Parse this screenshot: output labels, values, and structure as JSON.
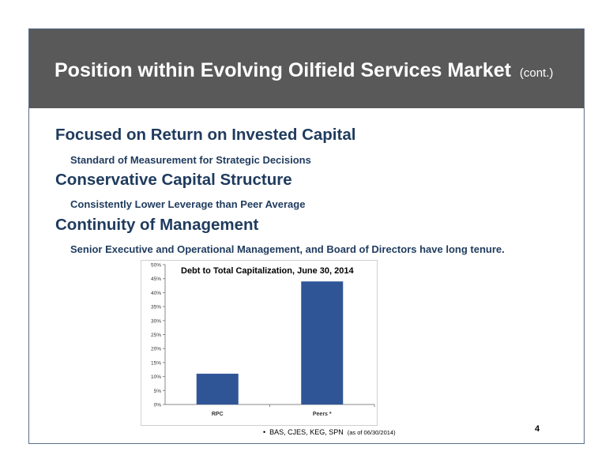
{
  "slide": {
    "title": "Position within Evolving Oilfield Services Market",
    "title_suffix": "(cont.)",
    "sections": [
      {
        "heading": "Focused on Return on Invested Capital",
        "sub": "Standard of Measurement for Strategic Decisions"
      },
      {
        "heading": "Conservative Capital Structure",
        "sub": "Consistently Lower Leverage than Peer Average"
      },
      {
        "heading": "Continuity of Management",
        "sub": "Senior Executive and Operational Management, and Board of Directors have long tenure."
      }
    ],
    "footnote": {
      "bullet": "•",
      "text": "BAS, CJES, KEG, SPN",
      "date": "(as of 06/30/2014)"
    },
    "page_number": "4"
  },
  "colors": {
    "title_bar": "#595959",
    "heading_text": "#1f3b5e",
    "bar": "#2f5597"
  },
  "chart_data": {
    "type": "bar",
    "title": "Debt to Total Capitalization, June 30, 2014",
    "categories": [
      "RPC",
      "Peers *"
    ],
    "values": [
      11,
      44
    ],
    "ylim": [
      0,
      50
    ],
    "yticks": [
      "0%",
      "5%",
      "10%",
      "15%",
      "20%",
      "25%",
      "30%",
      "35%",
      "40%",
      "45%",
      "50%"
    ],
    "grid": false,
    "legend": "none"
  }
}
